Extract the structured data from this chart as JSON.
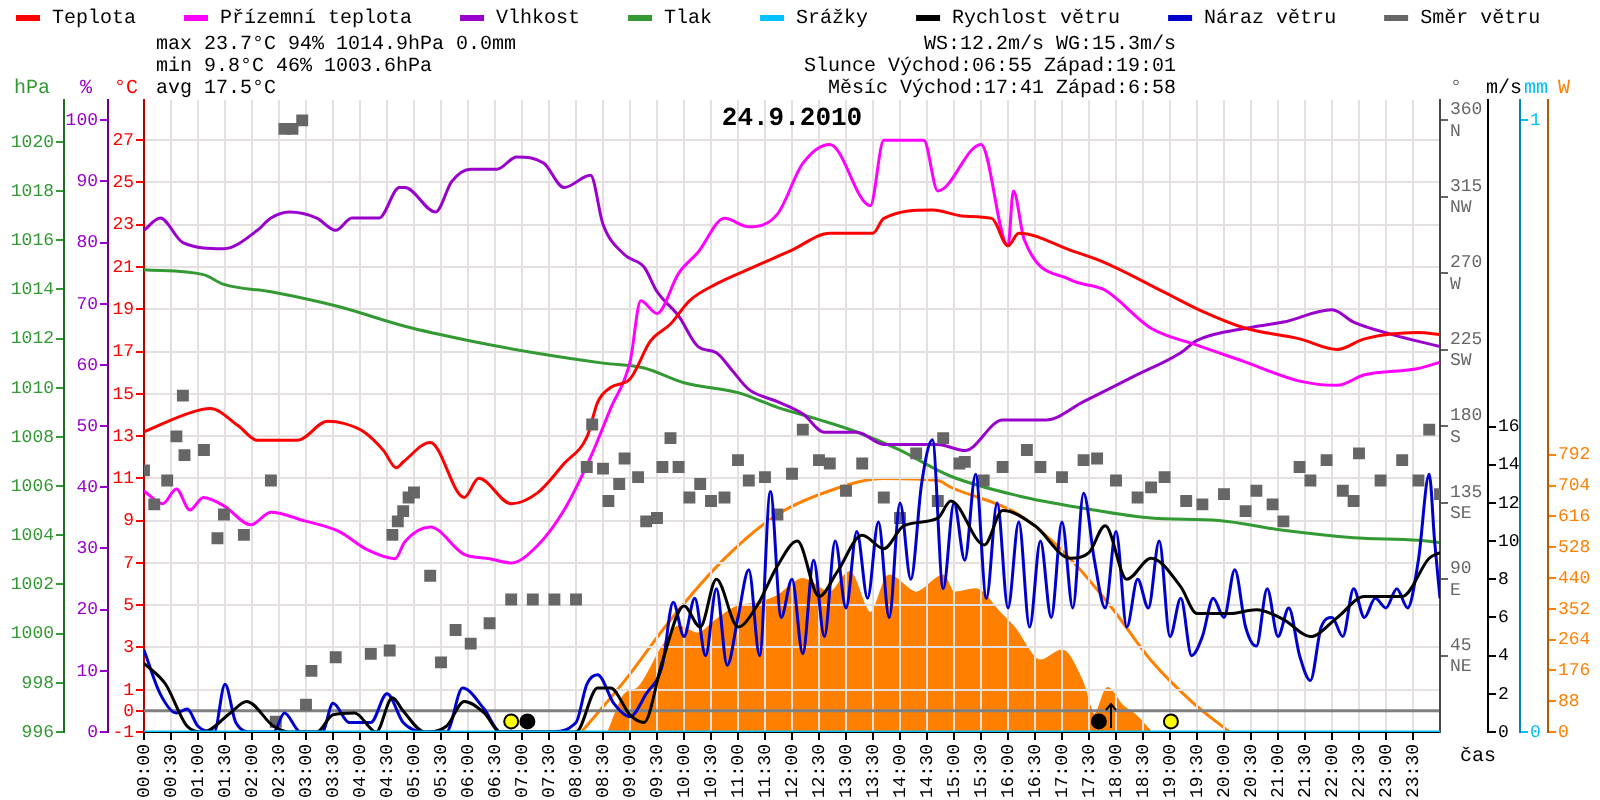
{
  "chart_data": [
    {
      "type": "line",
      "title": "24.9.2010",
      "xlabel": "čas",
      "ylabel": "°C",
      "y2label": "%",
      "y3label": "hPa",
      "legend": "top left",
      "grid": true,
      "annotations": [
        "max 23.7°C 94% 1014.9hPa 0.0mm",
        "min 9.8°C 46% 1003.6hPa",
        "avg 17.5°C",
        "WS:12.2m/s WG:15.3m/s",
        "Slunce Východ:06:55 Západ:19:01",
        "Měsíc Východ:17:41 Západ:6:58"
      ],
      "ref_lines": [
        {
          "axis": "y",
          "value": 0,
          "color": "#808080"
        }
      ],
      "xlim": [
        0,
        24
      ],
      "xticks": [
        {
          "value": 0,
          "label": "00:00"
        },
        {
          "value": 0.5,
          "label": "00:30"
        },
        {
          "value": 1,
          "label": "01:00"
        },
        {
          "value": 1.5,
          "label": "01:30"
        },
        {
          "value": 2,
          "label": "02:00"
        },
        {
          "value": 2.5,
          "label": "02:30"
        },
        {
          "value": 3,
          "label": "03:00"
        },
        {
          "value": 3.5,
          "label": "03:30"
        },
        {
          "value": 4,
          "label": "04:00"
        },
        {
          "value": 4.5,
          "label": "04:30"
        },
        {
          "value": 5,
          "label": "05:00"
        },
        {
          "value": 5.5,
          "label": "05:30"
        },
        {
          "value": 6,
          "label": "06:00"
        },
        {
          "value": 6.5,
          "label": "06:30"
        },
        {
          "value": 7,
          "label": "07:00"
        },
        {
          "value": 7.5,
          "label": "07:30"
        },
        {
          "value": 8,
          "label": "08:00"
        },
        {
          "value": 8.5,
          "label": "08:30"
        },
        {
          "value": 9,
          "label": "09:00"
        },
        {
          "value": 9.5,
          "label": "09:30"
        },
        {
          "value": 10,
          "label": "10:00"
        },
        {
          "value": 10.5,
          "label": "10:30"
        },
        {
          "value": 11,
          "label": "11:00"
        },
        {
          "value": 11.5,
          "label": "11:30"
        },
        {
          "value": 12,
          "label": "12:00"
        },
        {
          "value": 12.5,
          "label": "12:30"
        },
        {
          "value": 13,
          "label": "13:00"
        },
        {
          "value": 13.5,
          "label": "13:30"
        },
        {
          "value": 14,
          "label": "14:00"
        },
        {
          "value": 14.5,
          "label": "14:30"
        },
        {
          "value": 15,
          "label": "15:00"
        },
        {
          "value": 15.5,
          "label": "15:30"
        },
        {
          "value": 16,
          "label": "16:00"
        },
        {
          "value": 16.5,
          "label": "16:30"
        },
        {
          "value": 17,
          "label": "17:00"
        },
        {
          "value": 17.5,
          "label": "17:30"
        },
        {
          "value": 18,
          "label": "18:00"
        },
        {
          "value": 18.5,
          "label": "18:30"
        },
        {
          "value": 19,
          "label": "19:00"
        },
        {
          "value": 19.5,
          "label": "19:30"
        },
        {
          "value": 20,
          "label": "20:00"
        },
        {
          "value": 20.5,
          "label": "20:30"
        },
        {
          "value": 21,
          "label": "21:00"
        },
        {
          "value": 21.5,
          "label": "21:30"
        },
        {
          "value": 22,
          "label": "22:00"
        },
        {
          "value": 22.5,
          "label": "22:30"
        },
        {
          "value": 23,
          "label": "23:00"
        },
        {
          "value": 23.5,
          "label": "23:30"
        }
      ],
      "ylim": [
        -1,
        28.9
      ],
      "yticks": [
        -1,
        0,
        1,
        3,
        5,
        7,
        9,
        11,
        13,
        15,
        17,
        19,
        21,
        23,
        25,
        27
      ],
      "y2lim": [
        0,
        103.3
      ],
      "y2ticks": [
        0,
        10,
        20,
        30,
        40,
        50,
        60,
        70,
        80,
        90,
        100
      ],
      "y3lim": [
        996,
        1021.7
      ],
      "y3ticks": [
        996,
        998,
        1000,
        1002,
        1004,
        1006,
        1008,
        1010,
        1012,
        1014,
        1016,
        1018,
        1020
      ],
      "series": [
        {
          "type": "scatter",
          "marker": "circle",
          "color": "#ffff00",
          "x": [
            6.8,
            19.017
          ],
          "values": [
            -0.5,
            -0.5
          ]
        },
        {
          "type": "scatter",
          "marker": "circle",
          "color": "#000000",
          "x": [
            7.1,
            17.683
          ],
          "values": [
            -0.5,
            -0.5
          ]
        },
        {
          "name": "Teplota",
          "color": "#ff0000",
          "x": [
            0,
            0.85,
            1.23,
            1.74,
            2.1,
            2.84,
            3.4,
            3.7,
            4.07,
            4.44,
            4.67,
            4.81,
            5.3,
            5.93,
            6.2,
            6.8,
            7.28,
            7.78,
            8.21,
            8.4,
            8.64,
            9.0,
            9.38,
            9.75,
            10.1,
            10.6,
            11.2,
            12.0,
            12.7,
            13.5,
            13.7,
            14.6,
            15.2,
            15.7,
            16.0,
            16.2,
            17.15,
            17.8,
            18.9,
            19.6,
            20.4,
            21.4,
            22.1,
            22.6,
            23.6,
            24
          ],
          "values": [
            13.2,
            14.1,
            14.3,
            13.5,
            12.8,
            12.8,
            13.7,
            13.6,
            13.2,
            12.3,
            11.5,
            11.8,
            12.7,
            10.1,
            11.0,
            9.8,
            10.3,
            11.7,
            13.0,
            14.6,
            15.3,
            15.7,
            17.5,
            18.3,
            19.4,
            20.2,
            20.9,
            21.8,
            22.6,
            22.6,
            23.3,
            23.7,
            23.4,
            23.3,
            22.0,
            22.6,
            21.8,
            21.2,
            19.8,
            18.9,
            18.1,
            17.6,
            17.1,
            17.6,
            17.9,
            17.8
          ]
        },
        {
          "name": "Přízemní teplota",
          "color": "#ff00ff",
          "x": [
            0,
            0.35,
            0.6,
            0.85,
            1.1,
            1.48,
            1.98,
            2.35,
            2.96,
            3.6,
            4.15,
            4.65,
            4.83,
            5.3,
            5.93,
            6.4,
            6.8,
            7.28,
            7.78,
            8.27,
            8.64,
            9.0,
            9.2,
            9.5,
            9.9,
            10.26,
            10.75,
            11.2,
            11.73,
            12.2,
            12.7,
            13.45,
            13.7,
            14.44,
            14.7,
            15.5,
            16.0,
            16.1,
            16.3,
            17.15,
            17.8,
            18.65,
            19.5,
            20.4,
            21.4,
            22.1,
            22.6,
            23.6,
            24
          ],
          "values": [
            10.4,
            9.8,
            10.5,
            9.5,
            10.1,
            9.7,
            8.8,
            9.4,
            9.0,
            8.5,
            7.6,
            7.2,
            8.0,
            8.7,
            7.4,
            7.2,
            7.0,
            7.8,
            9.5,
            12.0,
            14.3,
            16.5,
            19.4,
            18.8,
            20.7,
            21.7,
            23.3,
            22.9,
            23.5,
            25.9,
            26.8,
            23.9,
            27.0,
            27.0,
            24.6,
            26.8,
            22.0,
            24.6,
            22.3,
            20.4,
            19.9,
            18.1,
            17.3,
            16.5,
            15.6,
            15.4,
            15.9,
            16.2,
            16.5
          ]
        },
        {
          "name": "Vlhkost",
          "color": "#9900cc",
          "axis": "y2",
          "x": [
            0,
            0.3,
            0.72,
            1.48,
            2.1,
            2.35,
            2.7,
            3.2,
            3.55,
            3.85,
            4.35,
            4.73,
            4.83,
            5.4,
            5.7,
            6.05,
            6.54,
            6.9,
            7.4,
            7.78,
            8.27,
            8.5,
            8.9,
            9.26,
            9.5,
            9.9,
            10.26,
            10.6,
            10.9,
            11.2,
            11.73,
            12.2,
            12.6,
            13.2,
            13.7,
            14.7,
            15.2,
            15.9,
            16.7,
            17.4,
            18.3,
            19.2,
            19.5,
            20.4,
            21.1,
            22.0,
            22.4,
            23.1,
            24
          ],
          "values": [
            82,
            84,
            80,
            79,
            82,
            84,
            85,
            84,
            82,
            84,
            84,
            89,
            89,
            85,
            90,
            92,
            92,
            94,
            93,
            89,
            91,
            83,
            78,
            76,
            72,
            68,
            63,
            62,
            59,
            56,
            54,
            52,
            49,
            49,
            47,
            47,
            46,
            51,
            51,
            54,
            58,
            62,
            64,
            66,
            67,
            69,
            67,
            65,
            63
          ]
        },
        {
          "name": "Tlak",
          "color": "#339933",
          "axis": "y3",
          "x": [
            0,
            1.1,
            1.48,
            2.35,
            3.6,
            4.83,
            6.05,
            7.28,
            8.5,
            9.26,
            10.0,
            11.0,
            11.73,
            12.5,
            13.2,
            13.96,
            14.94,
            16.2,
            17.4,
            18.65,
            19.9,
            21.1,
            22.4,
            23.6,
            24
          ],
          "values": [
            1014.8,
            1014.6,
            1014.2,
            1013.9,
            1013.3,
            1012.5,
            1011.9,
            1011.4,
            1011.0,
            1010.8,
            1010.2,
            1009.8,
            1009.2,
            1008.7,
            1008.2,
            1007.5,
            1006.4,
            1005.6,
            1005.1,
            1004.7,
            1004.6,
            1004.2,
            1003.9,
            1003.8,
            1003.7
          ]
        }
      ]
    },
    {
      "type": "line",
      "ylabel": "m/s",
      "y2label": "mm",
      "y3label": "°",
      "legend": "top right",
      "tick_labels": "y",
      "xlim": [
        0,
        24
      ],
      "ylim": [
        0,
        33.1
      ],
      "yticks": [
        0,
        2,
        4,
        6,
        8,
        10,
        12,
        14,
        16
      ],
      "y2lim": [
        0,
        1.033
      ],
      "y2ticks": [
        0,
        1
      ],
      "y3lim": [
        0,
        372
      ],
      "y3ticks": [
        {
          "value": 45,
          "label": "45\nNE"
        },
        {
          "value": 90,
          "label": "90\nE"
        },
        {
          "value": 135,
          "label": "135\nSE"
        },
        {
          "value": 180,
          "label": "180\nS"
        },
        {
          "value": 225,
          "label": "225\nSW"
        },
        {
          "value": 270,
          "label": "270\nW"
        },
        {
          "value": 315,
          "label": "315\nNW"
        },
        {
          "value": 360,
          "label": "360\nN"
        }
      ],
      "series": [
        {
          "name": "Srážky",
          "color": "#00c0ff",
          "axis": "y2",
          "x": [
            0,
            24
          ],
          "values": [
            0,
            0
          ]
        },
        {
          "name": "Rychlost větru",
          "color": "#000000",
          "x": [
            0,
            0.4,
            0.8,
            1.1,
            1.6,
            1.9,
            2.4,
            2.7,
            3.2,
            3.5,
            3.9,
            4.3,
            4.6,
            4.8,
            5.2,
            5.6,
            5.93,
            6.3,
            6.6,
            8.0,
            8.4,
            8.64,
            9.0,
            9.26,
            9.6,
            10.0,
            10.3,
            10.6,
            11.0,
            11.35,
            11.73,
            12.1,
            12.5,
            12.84,
            13.3,
            13.7,
            14.07,
            14.7,
            14.94,
            15.56,
            15.9,
            16.5,
            17.15,
            17.5,
            17.8,
            18.2,
            18.65,
            19.2,
            19.5,
            20.1,
            20.6,
            21.1,
            21.6,
            22.1,
            22.6,
            23.3,
            23.8,
            24
          ],
          "values": [
            3.6,
            2.5,
            0.3,
            0,
            1.0,
            1.6,
            0.3,
            0,
            0,
            0.9,
            1.0,
            0,
            1.8,
            1.1,
            0,
            0.3,
            1.6,
            1.0,
            0,
            0,
            2.3,
            2.3,
            0.9,
            0.5,
            3.7,
            6.6,
            5.5,
            8.0,
            5.5,
            6.6,
            8.7,
            10.0,
            7.1,
            8.4,
            10.3,
            9.6,
            10.8,
            11.2,
            12.1,
            9.8,
            11.6,
            10.8,
            9.1,
            9.4,
            10.8,
            8.0,
            9.1,
            7.6,
            6.2,
            6.2,
            6.4,
            5.9,
            5.0,
            6.0,
            7.1,
            7.1,
            9.1,
            9.4
          ]
        },
        {
          "name": "Náraz větru",
          "color": "#0000cc",
          "x": [
            0,
            0.3,
            0.6,
            0.8,
            1.0,
            1.3,
            1.5,
            1.7,
            2.0,
            2.4,
            2.6,
            2.9,
            3.3,
            3.5,
            3.8,
            4.2,
            4.5,
            4.8,
            5.2,
            5.6,
            5.9,
            6.3,
            6.6,
            7.5,
            8.0,
            8.2,
            8.4,
            8.7,
            9.0,
            9.3,
            9.6,
            9.8,
            10.0,
            10.2,
            10.4,
            10.6,
            10.8,
            11.0,
            11.2,
            11.4,
            11.6,
            11.8,
            12.0,
            12.2,
            12.4,
            12.6,
            12.8,
            13.0,
            13.2,
            13.4,
            13.6,
            13.8,
            14.0,
            14.2,
            14.4,
            14.6,
            14.8,
            15.0,
            15.2,
            15.4,
            15.6,
            15.8,
            16.0,
            16.2,
            16.4,
            16.6,
            16.8,
            17.0,
            17.2,
            17.4,
            17.6,
            17.8,
            18.0,
            18.2,
            18.4,
            18.6,
            18.8,
            19.0,
            19.2,
            19.4,
            19.6,
            19.8,
            20.0,
            20.2,
            20.4,
            20.6,
            20.8,
            21.0,
            21.2,
            21.4,
            21.6,
            21.8,
            22.0,
            22.2,
            22.4,
            22.6,
            22.8,
            23.0,
            23.2,
            23.4,
            23.6,
            23.8,
            23.9,
            24
          ],
          "values": [
            4.3,
            2.0,
            1.0,
            1.2,
            0.3,
            0,
            2.5,
            0.5,
            0,
            0,
            1.0,
            0,
            0,
            1.5,
            0.5,
            0.5,
            2.0,
            0.5,
            0,
            0,
            2.3,
            1.2,
            0,
            0,
            0.5,
            2.5,
            3.0,
            1.5,
            0.8,
            2.0,
            3.5,
            6.8,
            5.0,
            7.0,
            4.0,
            7.5,
            3.5,
            6.0,
            8.5,
            4.0,
            12.6,
            6.0,
            8.0,
            4.1,
            9.0,
            5.0,
            10.0,
            6.5,
            10.5,
            7.0,
            11.0,
            6.0,
            12.0,
            8.0,
            13.0,
            15.3,
            7.5,
            12.0,
            9.0,
            13.5,
            7.0,
            12.0,
            6.5,
            11.0,
            5.5,
            10.0,
            6.0,
            11.0,
            6.5,
            12.5,
            9.0,
            6.5,
            10.5,
            5.5,
            8.0,
            6.5,
            10.0,
            5.0,
            7.0,
            4.0,
            5.0,
            7.0,
            6.0,
            8.5,
            5.5,
            4.5,
            7.5,
            5.0,
            6.5,
            4.0,
            2.7,
            5.5,
            6.0,
            5.0,
            7.5,
            6.0,
            7.0,
            6.5,
            7.5,
            6.5,
            9.0,
            13.5,
            10.0,
            7.0
          ]
        },
        {
          "name": "Směr větru",
          "type": "scatter",
          "marker": "square",
          "color": "#666666",
          "axis": "y3",
          "x": [
            0,
            0.19,
            0.43,
            0.6,
            0.72,
            0.75,
            1.11,
            1.36,
            1.48,
            1.85,
            2.35,
            2.44,
            2.6,
            2.75,
            2.93,
            3.0,
            3.1,
            3.55,
            4.2,
            4.55,
            4.6,
            4.7,
            4.8,
            4.9,
            5.0,
            5.3,
            5.5,
            5.77,
            6.05,
            6.4,
            6.8,
            7.2,
            7.6,
            8.0,
            8.2,
            8.3,
            8.5,
            8.6,
            8.8,
            8.9,
            9.15,
            9.3,
            9.5,
            9.6,
            9.75,
            9.9,
            10.1,
            10.3,
            10.5,
            10.75,
            11.0,
            11.2,
            11.5,
            11.73,
            12.0,
            12.2,
            12.5,
            12.7,
            13.0,
            13.3,
            13.7,
            14.0,
            14.3,
            14.7,
            14.8,
            15.1,
            15.2,
            15.55,
            15.9,
            16.35,
            16.6,
            17.0,
            17.4,
            17.65,
            18.0,
            18.4,
            18.65,
            18.9,
            19.3,
            19.6,
            20.0,
            20.4,
            20.6,
            20.9,
            21.1,
            21.4,
            21.6,
            21.9,
            22.2,
            22.4,
            22.5,
            22.9,
            23.3,
            23.6,
            23.8,
            24.0
          ],
          "values": [
            154,
            134,
            148,
            174,
            198,
            163,
            166,
            114,
            128,
            116,
            148,
            6,
            355,
            355,
            360,
            16,
            36,
            44,
            46,
            48,
            116,
            124,
            130,
            138,
            141,
            92,
            41,
            60,
            52,
            64,
            78,
            78,
            78,
            78,
            156,
            181,
            155,
            136,
            146,
            161,
            150,
            124,
            126,
            156,
            173,
            156,
            138,
            146,
            136,
            138,
            160,
            148,
            150,
            128,
            152,
            178,
            160,
            158,
            142,
            158,
            138,
            126,
            164,
            136,
            173,
            158,
            159,
            148,
            156,
            166,
            156,
            150,
            160,
            161,
            148,
            138,
            144,
            150,
            136,
            134,
            140,
            130,
            142,
            134,
            124,
            156,
            148,
            160,
            142,
            136,
            164,
            148,
            160,
            148,
            178,
            140
          ]
        }
      ]
    },
    {
      "type": "line",
      "ylabel": "W",
      "tick_labels": "y",
      "xlim": [
        0,
        24
      ],
      "ylim": [
        0,
        1805
      ],
      "yticks": [
        0,
        88,
        176,
        264,
        352,
        440,
        528,
        616,
        704,
        792
      ],
      "series": [
        {
          "color": "#ff8000",
          "x": [
            8.1,
            8.9,
            9.75,
            10.75,
            11.73,
            12.7,
            13.7,
            14.7,
            14.94,
            16.2,
            17.15,
            17.9,
            18.65,
            19.4,
            20.1
          ],
          "values": [
            0,
            146,
            320,
            495,
            621,
            689,
            724,
            718,
            699,
            621,
            495,
            359,
            204,
            87,
            0
          ]
        },
        {
          "type": "area",
          "color": "#ff8000",
          "x": [
            8.6,
            8.9,
            9.15,
            9.6,
            9.9,
            10.26,
            10.6,
            11.0,
            11.35,
            11.73,
            12.2,
            12.7,
            13.06,
            13.45,
            13.8,
            14.3,
            14.8,
            15.0,
            15.4,
            15.85,
            16.1,
            16.6,
            17.0,
            17.37,
            17.6,
            17.85,
            18.1,
            18.35,
            18.65
          ],
          "values": [
            0,
            107,
            126,
            243,
            301,
            281,
            320,
            359,
            367,
            388,
            437,
            398,
            456,
            340,
            447,
            398,
            447,
            398,
            408,
            340,
            301,
            204,
            233,
            146,
            49,
            126,
            78,
            49,
            0
          ]
        }
      ]
    }
  ]
}
